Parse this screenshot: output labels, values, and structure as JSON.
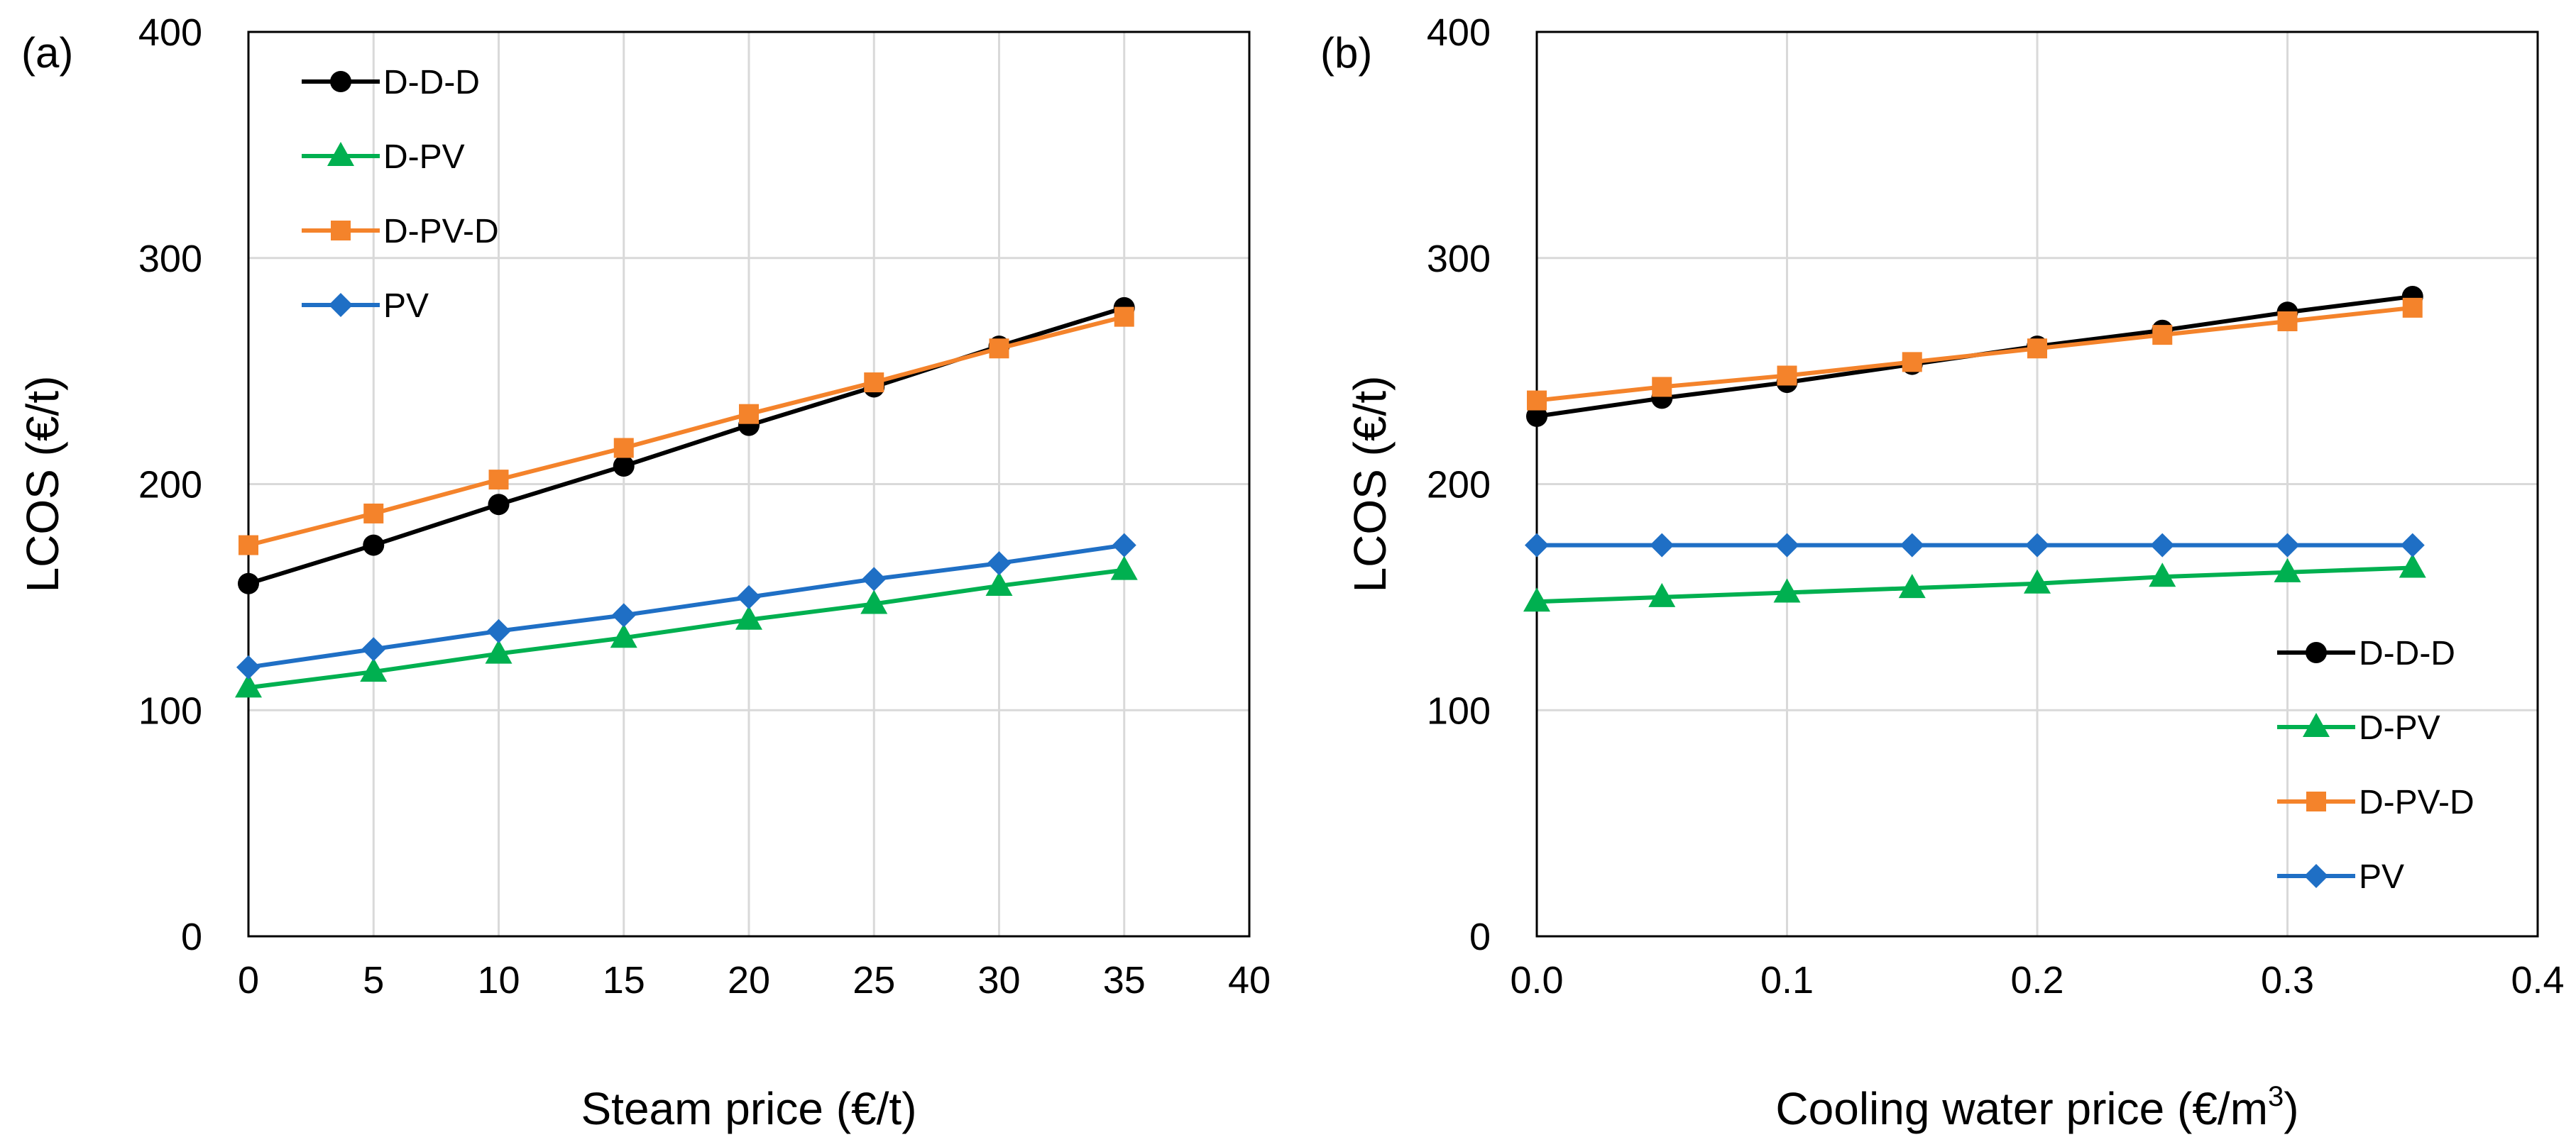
{
  "chart_data": [
    {
      "type": "line",
      "panel_label": "(a)",
      "xlabel": "Steam price (€/t)",
      "ylabel": "LCOS (€/t)",
      "xlim": [
        0,
        40
      ],
      "ylim": [
        0,
        400
      ],
      "x_ticks": [
        0,
        5,
        10,
        15,
        20,
        25,
        30,
        35,
        40
      ],
      "x_tick_labels": [
        "0",
        "5",
        "10",
        "15",
        "20",
        "25",
        "30",
        "35",
        "40"
      ],
      "y_ticks": [
        0,
        100,
        200,
        300,
        400
      ],
      "y_tick_labels": [
        "0",
        "100",
        "200",
        "300",
        "400"
      ],
      "grid": true,
      "legend_position": "top-left",
      "x": [
        0,
        5,
        10,
        15,
        20,
        25,
        30,
        35
      ],
      "series": [
        {
          "name": "D-D-D",
          "color": "#000000",
          "marker": "circle",
          "values": [
            156,
            173,
            191,
            208,
            226,
            243,
            261,
            278
          ]
        },
        {
          "name": "D-PV",
          "color": "#00b050",
          "marker": "triangle",
          "values": [
            110,
            117,
            125,
            132,
            140,
            147,
            155,
            162
          ]
        },
        {
          "name": "D-PV-D",
          "color": "#f4832b",
          "marker": "square",
          "values": [
            173,
            187,
            202,
            216,
            231,
            245,
            260,
            274
          ]
        },
        {
          "name": "PV",
          "color": "#1f6fc5",
          "marker": "diamond",
          "values": [
            119,
            127,
            135,
            142,
            150,
            158,
            165,
            173
          ]
        }
      ]
    },
    {
      "type": "line",
      "panel_label": "(b)",
      "xlabel": "Cooling water price (€/m",
      "xlabel_superscript": "3",
      "xlabel_suffix": ")",
      "ylabel": "LCOS (€/t)",
      "xlim": [
        0,
        0.4
      ],
      "ylim": [
        0,
        400
      ],
      "x_ticks": [
        0,
        0.1,
        0.2,
        0.3,
        0.4
      ],
      "x_tick_labels": [
        "0.0",
        "0.1",
        "0.2",
        "0.3",
        "0.4"
      ],
      "y_ticks": [
        0,
        100,
        200,
        300,
        400
      ],
      "y_tick_labels": [
        "0",
        "100",
        "200",
        "300",
        "400"
      ],
      "grid": true,
      "legend_position": "bottom-right",
      "x": [
        0,
        0.05,
        0.1,
        0.15,
        0.2,
        0.25,
        0.3,
        0.35
      ],
      "series": [
        {
          "name": "D-D-D",
          "color": "#000000",
          "marker": "circle",
          "values": [
            230,
            238,
            245,
            253,
            261,
            268,
            276,
            283
          ]
        },
        {
          "name": "D-PV",
          "color": "#00b050",
          "marker": "triangle",
          "values": [
            148,
            150,
            152,
            154,
            156,
            159,
            161,
            163
          ]
        },
        {
          "name": "D-PV-D",
          "color": "#f4832b",
          "marker": "square",
          "values": [
            237,
            243,
            248,
            254,
            260,
            266,
            272,
            278
          ]
        },
        {
          "name": "PV",
          "color": "#1f6fc5",
          "marker": "diamond",
          "values": [
            173,
            173,
            173,
            173,
            173,
            173,
            173,
            173
          ]
        }
      ]
    }
  ]
}
